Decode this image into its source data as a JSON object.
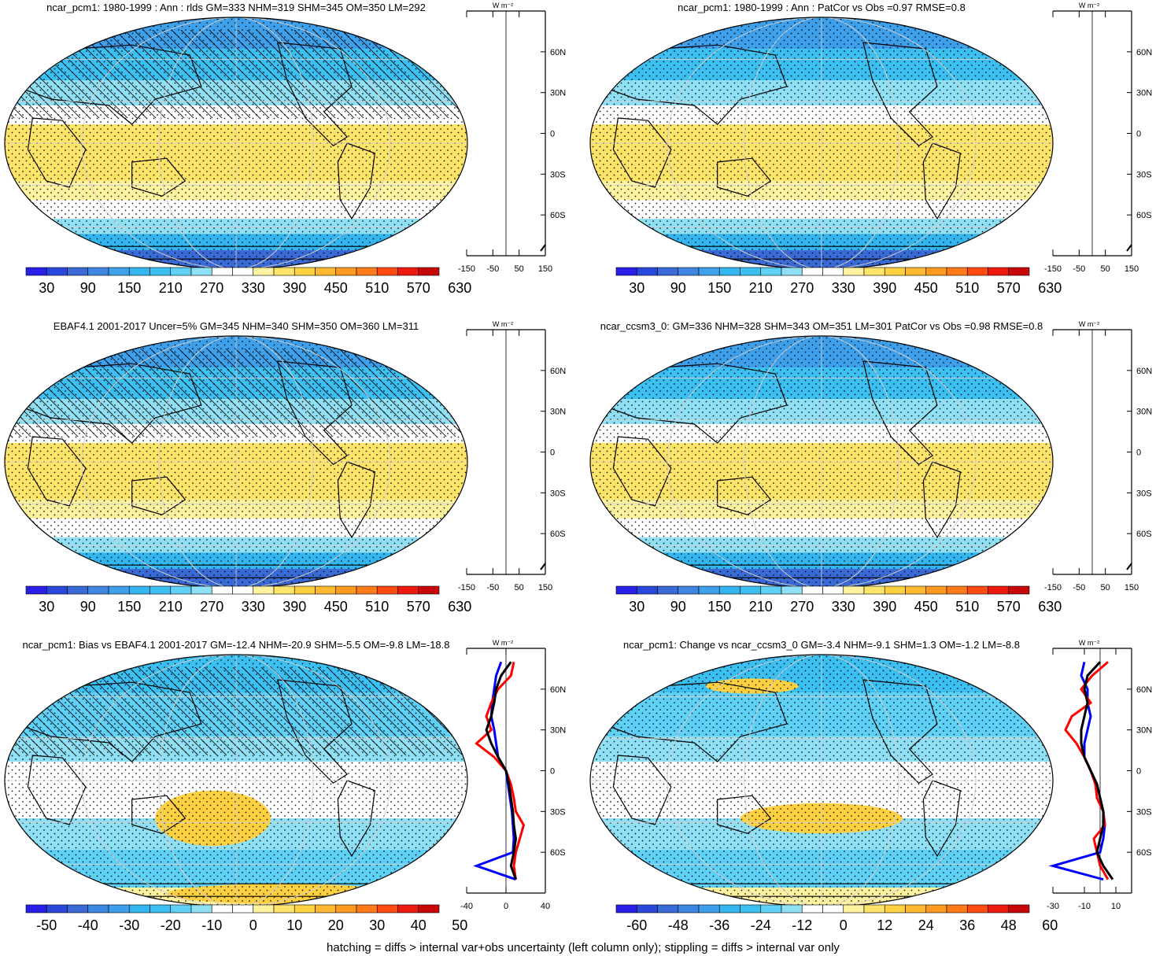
{
  "footnote": "hatching = diffs > internal var+obs uncertainty (left column only); stippling = diffs > internal var only",
  "colors": {
    "palette": [
      "#2a1fe8",
      "#2b48dd",
      "#3a6ad6",
      "#3e86e2",
      "#3ea0ea",
      "#33b6f0",
      "#3cc0f2",
      "#5fd0f6",
      "#8fdff5",
      "#ffffff",
      "#ffffff",
      "#fff3a0",
      "#ffe46a",
      "#ffd040",
      "#ffb830",
      "#ff9a20",
      "#ff7a18",
      "#ff4a10",
      "#ee1a10",
      "#c80808"
    ],
    "land": "#000000",
    "zonal_blue": "#0000ff",
    "zonal_red": "#ff0000",
    "zonal_black": "#000000"
  },
  "panels": [
    {
      "title": "ncar_pcm1: 1980-1999 : Ann : rlds GM=333 NHM=319 SHM=345 OM=350 LM=292",
      "colorbar_labels": [
        "30",
        "90",
        "150",
        "210",
        "270",
        "330",
        "390",
        "450",
        "510",
        "570",
        "630"
      ],
      "zonal_ticks": [
        "-150",
        "-50",
        "50",
        "150"
      ],
      "zonal_range": [
        -150,
        150
      ],
      "lat_labels": [
        "60N",
        "30N",
        "0",
        "30S",
        "60S"
      ],
      "unit": "W m⁻²",
      "pattern": "hatched",
      "field": "mean"
    },
    {
      "title": "ncar_pcm1: 1980-1999 : Ann : PatCor vs Obs =0.97 RMSE=0.8",
      "colorbar_labels": [
        "30",
        "90",
        "150",
        "210",
        "270",
        "330",
        "390",
        "450",
        "510",
        "570",
        "630"
      ],
      "zonal_ticks": [
        "-150",
        "-50",
        "50",
        "150"
      ],
      "zonal_range": [
        -150,
        150
      ],
      "lat_labels": [
        "60N",
        "30N",
        "0",
        "30S",
        "60S"
      ],
      "unit": "W m⁻²",
      "pattern": "stippled",
      "field": "mean"
    },
    {
      "title": "EBAF4.1 2001-2017 Uncer=5% GM=345 NHM=340 SHM=350 OM=360 LM=311",
      "colorbar_labels": [
        "30",
        "90",
        "150",
        "210",
        "270",
        "330",
        "390",
        "450",
        "510",
        "570",
        "630"
      ],
      "zonal_ticks": [
        "-150",
        "-50",
        "50",
        "150"
      ],
      "zonal_range": [
        -150,
        150
      ],
      "lat_labels": [
        "60N",
        "30N",
        "0",
        "30S",
        "60S"
      ],
      "unit": "W m⁻²",
      "pattern": "hatched",
      "field": "mean"
    },
    {
      "title": "ncar_ccsm3_0: GM=336 NHM=328 SHM=343 OM=351 LM=301 PatCor vs Obs =0.98 RMSE=0.8",
      "colorbar_labels": [
        "30",
        "90",
        "150",
        "210",
        "270",
        "330",
        "390",
        "450",
        "510",
        "570",
        "630"
      ],
      "zonal_ticks": [
        "-150",
        "-50",
        "50",
        "150"
      ],
      "zonal_range": [
        -150,
        150
      ],
      "lat_labels": [
        "60N",
        "30N",
        "0",
        "30S",
        "60S"
      ],
      "unit": "W m⁻²",
      "pattern": "stippled",
      "field": "mean"
    },
    {
      "title": "ncar_pcm1: Bias vs EBAF4.1 2001-2017 GM=-12.4 NHM=-20.9 SHM=-5.5 OM=-9.8 LM=-18.8",
      "colorbar_labels": [
        "-50",
        "-40",
        "-30",
        "-20",
        "-10",
        "0",
        "10",
        "20",
        "30",
        "40",
        "50"
      ],
      "zonal_ticks": [
        "-40",
        "0",
        "40"
      ],
      "zonal_range": [
        -40,
        40
      ],
      "lat_labels": [
        "60N",
        "30N",
        "0",
        "30S",
        "60S"
      ],
      "unit": "W m⁻²",
      "pattern": "hatched",
      "field": "diff"
    },
    {
      "title": "ncar_pcm1: Change vs ncar_ccsm3_0 GM=-3.4 NHM=-9.1 SHM=1.3 OM=-1.2 LM=-8.8",
      "colorbar_labels": [
        "-60",
        "-48",
        "-36",
        "-24",
        "-12",
        "0",
        "12",
        "24",
        "36",
        "48",
        "60"
      ],
      "zonal_ticks": [
        "-30",
        "-10",
        "10"
      ],
      "zonal_range": [
        -30,
        20
      ],
      "lat_labels": [
        "60N",
        "30N",
        "0",
        "30S",
        "60S"
      ],
      "unit": "W m⁻²",
      "pattern": "stippled",
      "field": "diff"
    }
  ],
  "chart_data": {
    "type": "heatmap",
    "lat_axis": [
      90,
      60,
      30,
      0,
      -30,
      -60,
      -90
    ],
    "zonal_means_bias": {
      "lat": [
        80,
        70,
        60,
        50,
        40,
        30,
        20,
        10,
        0,
        -10,
        -20,
        -30,
        -40,
        -50,
        -60,
        -70,
        -80
      ],
      "series": [
        {
          "color": "blue",
          "values": [
            -5,
            -10,
            -12,
            -14,
            -15,
            -12,
            -10,
            -8,
            0,
            2,
            4,
            6,
            7,
            8,
            7,
            -30,
            10
          ]
        },
        {
          "color": "red",
          "values": [
            8,
            5,
            -8,
            -15,
            -20,
            -15,
            -30,
            -12,
            0,
            5,
            8,
            10,
            18,
            14,
            10,
            8,
            10
          ]
        },
        {
          "color": "black",
          "values": [
            5,
            -5,
            -10,
            -12,
            -15,
            -20,
            -15,
            -8,
            0,
            3,
            5,
            7,
            8,
            10,
            8,
            5,
            10
          ]
        }
      ]
    },
    "zonal_means_change": {
      "lat": [
        80,
        70,
        60,
        50,
        40,
        30,
        20,
        10,
        0,
        -10,
        -20,
        -30,
        -40,
        -50,
        -60,
        -70,
        -80
      ],
      "series": [
        {
          "color": "blue",
          "values": [
            -10,
            -12,
            -8,
            -8,
            -6,
            -8,
            -10,
            -10,
            -6,
            -2,
            0,
            2,
            3,
            2,
            0,
            -30,
            2
          ]
        },
        {
          "color": "red",
          "values": [
            5,
            -5,
            -12,
            -6,
            -18,
            -22,
            -15,
            -10,
            -6,
            -3,
            -2,
            2,
            3,
            -4,
            -2,
            0,
            5
          ]
        },
        {
          "color": "black",
          "values": [
            0,
            -8,
            -10,
            -8,
            -10,
            -12,
            -12,
            -10,
            -6,
            -2,
            0,
            2,
            2,
            0,
            -2,
            2,
            8
          ]
        }
      ]
    }
  }
}
